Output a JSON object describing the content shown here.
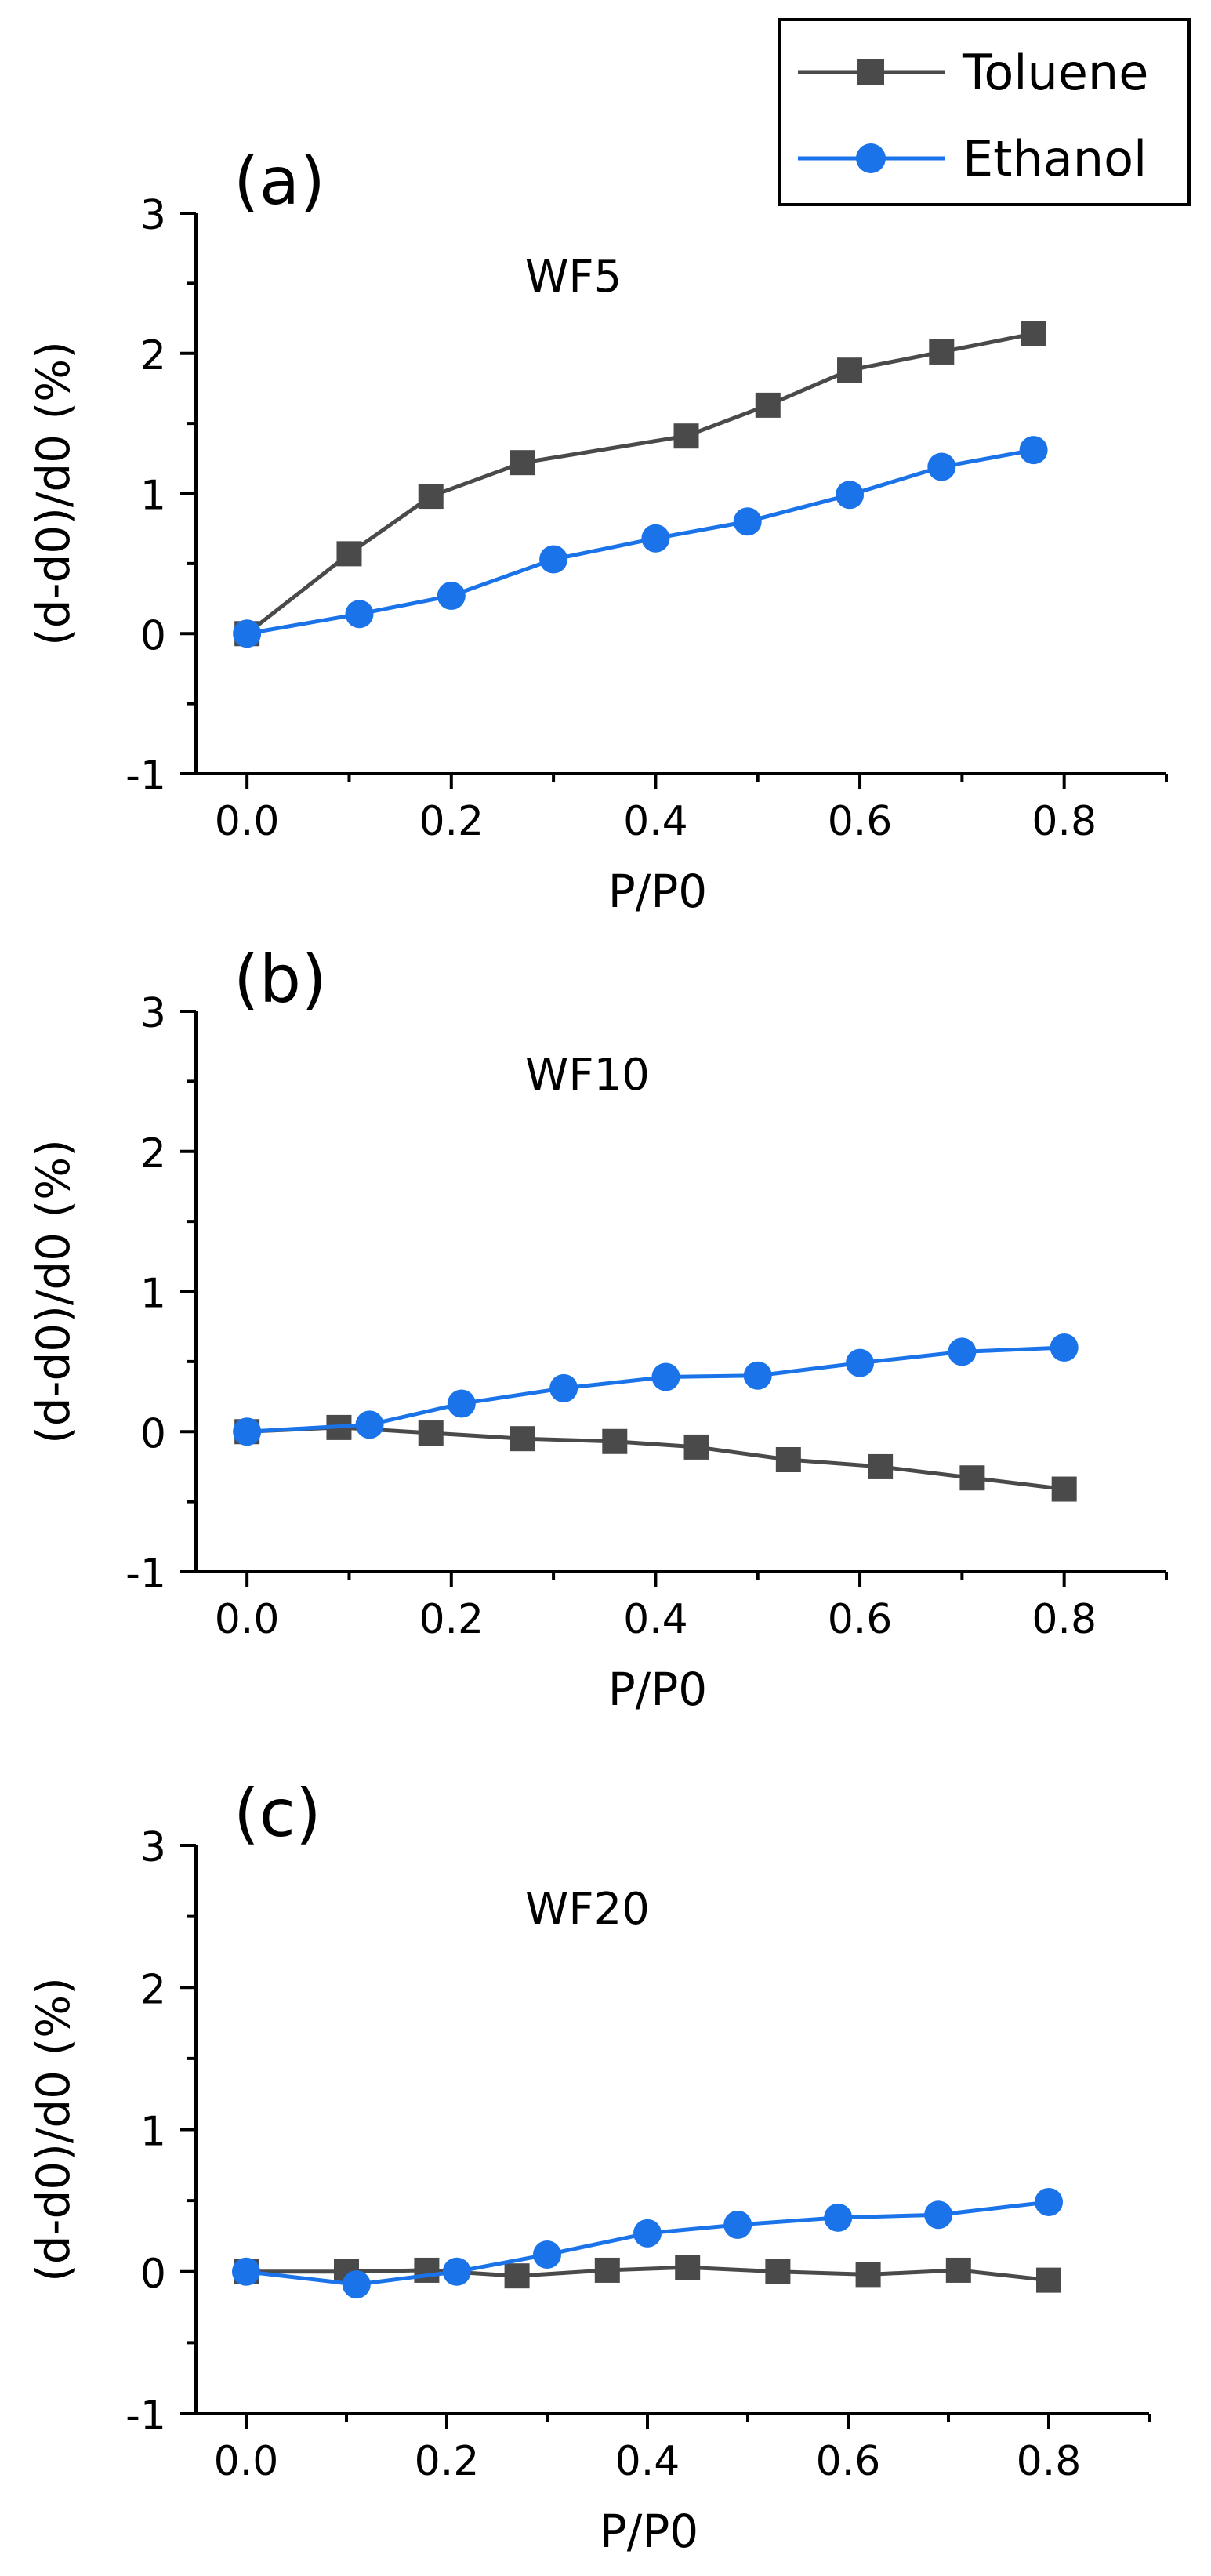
{
  "legend": {
    "placement": "top-right",
    "entries": [
      {
        "label": "Toluene",
        "color": "#4a4a4a",
        "marker": "square"
      },
      {
        "label": "Ethanol",
        "color": "#1a73e8",
        "marker": "circle"
      }
    ]
  },
  "chart_data": [
    {
      "type": "line",
      "panel_label": "(a)",
      "sample_label": "WF5",
      "xlabel": "P/P0",
      "ylabel": "(d-d0)/d0 (%)",
      "xlim": [
        -0.05,
        0.9
      ],
      "ylim": [
        -1,
        3
      ],
      "xticks": [
        "0.0",
        "0.2",
        "0.4",
        "0.6",
        "0.8"
      ],
      "yticks": [
        "-1",
        "0",
        "1",
        "2",
        "3"
      ],
      "grid": false,
      "series": [
        {
          "name": "Toluene",
          "x": [
            0.0,
            0.1,
            0.18,
            0.27,
            0.43,
            0.51,
            0.59,
            0.68,
            0.77
          ],
          "y": [
            0.0,
            0.57,
            0.98,
            1.22,
            1.41,
            1.63,
            1.88,
            2.01,
            2.14
          ]
        },
        {
          "name": "Ethanol",
          "x": [
            0.0,
            0.11,
            0.2,
            0.3,
            0.4,
            0.49,
            0.59,
            0.68,
            0.77
          ],
          "y": [
            0.0,
            0.14,
            0.27,
            0.53,
            0.68,
            0.8,
            0.99,
            1.19,
            1.31
          ]
        }
      ]
    },
    {
      "type": "line",
      "panel_label": "(b)",
      "sample_label": "WF10",
      "xlabel": "P/P0",
      "ylabel": "(d-d0)/d0 (%)",
      "xlim": [
        -0.05,
        0.9
      ],
      "ylim": [
        -1,
        3
      ],
      "xticks": [
        "0.0",
        "0.2",
        "0.4",
        "0.6",
        "0.8"
      ],
      "yticks": [
        "-1",
        "0",
        "1",
        "2",
        "3"
      ],
      "grid": false,
      "series": [
        {
          "name": "Toluene",
          "x": [
            0.0,
            0.09,
            0.18,
            0.27,
            0.36,
            0.44,
            0.53,
            0.62,
            0.71,
            0.8
          ],
          "y": [
            0.0,
            0.03,
            -0.01,
            -0.05,
            -0.07,
            -0.11,
            -0.2,
            -0.25,
            -0.33,
            -0.41
          ]
        },
        {
          "name": "Ethanol",
          "x": [
            0.0,
            0.12,
            0.21,
            0.31,
            0.41,
            0.5,
            0.6,
            0.7,
            0.8
          ],
          "y": [
            0.0,
            0.05,
            0.2,
            0.31,
            0.39,
            0.4,
            0.49,
            0.57,
            0.6
          ]
        }
      ]
    },
    {
      "type": "line",
      "panel_label": "(c)",
      "sample_label": "WF20",
      "xlabel": "P/P0",
      "ylabel": "(d-d0)/d0 (%)",
      "xlim": [
        -0.05,
        0.9
      ],
      "ylim": [
        -1,
        3
      ],
      "xticks": [
        "0.0",
        "0.2",
        "0.4",
        "0.6",
        "0.8"
      ],
      "yticks": [
        "-1",
        "0",
        "1",
        "2",
        "3"
      ],
      "grid": false,
      "series": [
        {
          "name": "Toluene",
          "x": [
            0.0,
            0.1,
            0.18,
            0.27,
            0.36,
            0.44,
            0.53,
            0.62,
            0.71,
            0.8
          ],
          "y": [
            0.0,
            0.0,
            0.01,
            -0.03,
            0.01,
            0.03,
            0.0,
            -0.02,
            0.01,
            -0.06
          ]
        },
        {
          "name": "Ethanol",
          "x": [
            0.0,
            0.11,
            0.21,
            0.3,
            0.4,
            0.49,
            0.59,
            0.69,
            0.8
          ],
          "y": [
            0.0,
            -0.09,
            0.0,
            0.12,
            0.27,
            0.33,
            0.38,
            0.4,
            0.49
          ]
        }
      ]
    }
  ]
}
